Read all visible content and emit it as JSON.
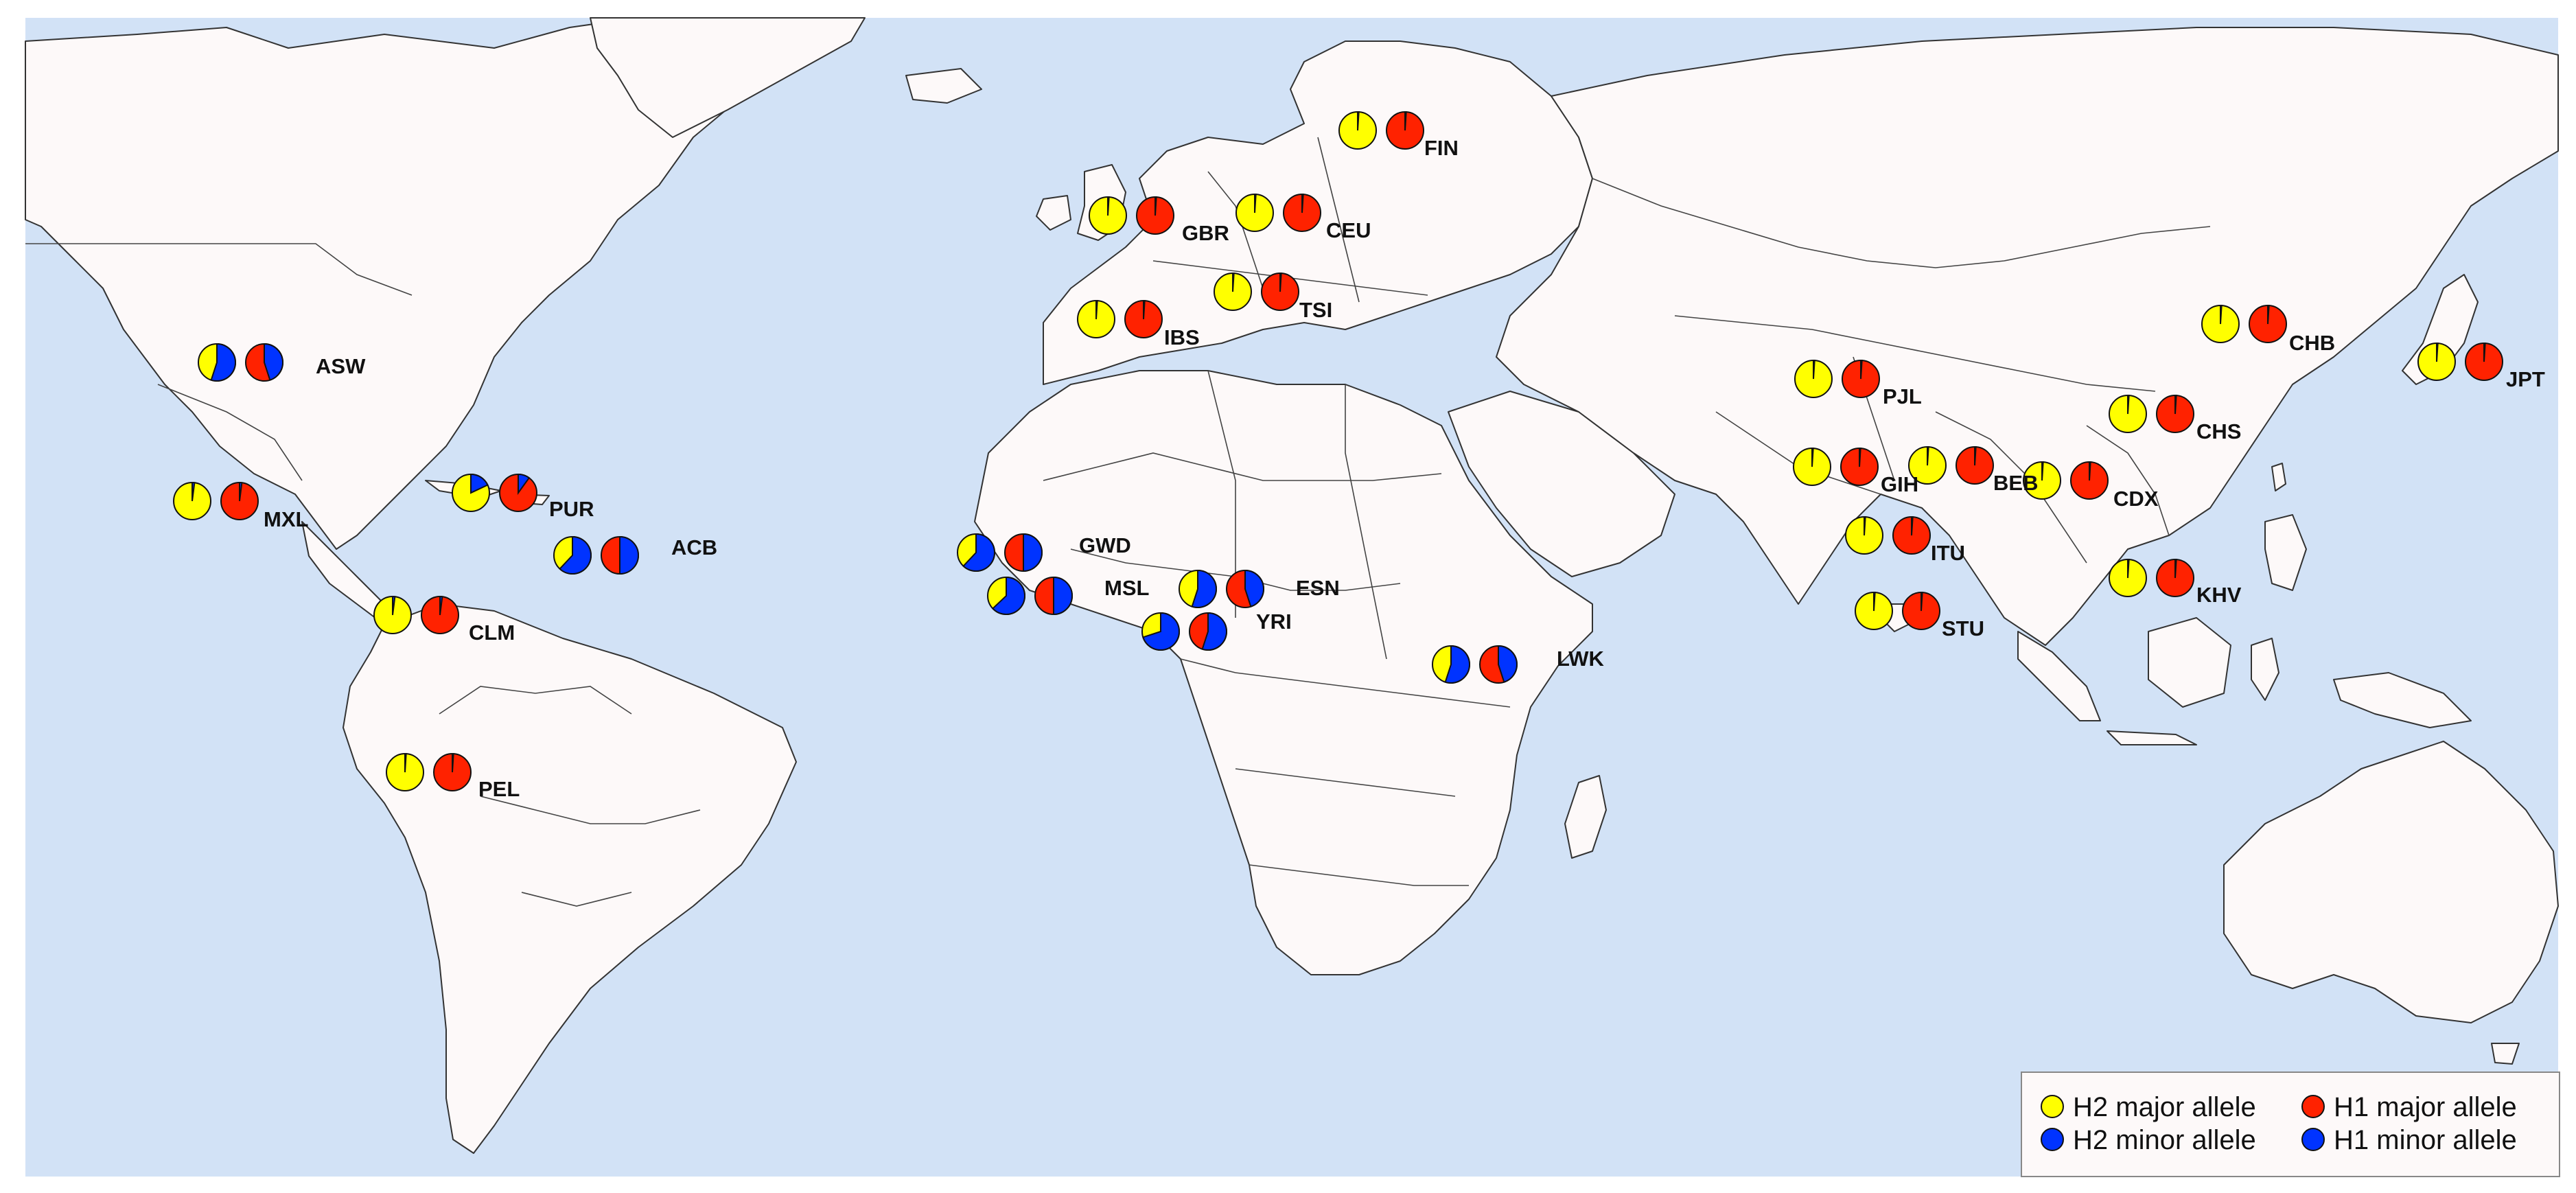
{
  "colors": {
    "ocean": "#d2e2f6",
    "land": "#fdf9f9",
    "border": "#333333",
    "h2_major": "#ffff00",
    "h2_minor": "#0033ff",
    "h1_major": "#ff2200",
    "h1_minor": "#0033ff"
  },
  "legend": {
    "h2_major": "H2 major allele",
    "h1_major": "H1 major allele",
    "h2_minor": "H2 minor allele",
    "h1_minor": "H1 minor allele"
  },
  "populations": [
    {
      "code": "FIN",
      "h2_minor_freq": 0.01,
      "h1_minor_freq": 0.01
    },
    {
      "code": "GBR",
      "h2_minor_freq": 0.01,
      "h1_minor_freq": 0.01
    },
    {
      "code": "CEU",
      "h2_minor_freq": 0.01,
      "h1_minor_freq": 0.01
    },
    {
      "code": "TSI",
      "h2_minor_freq": 0.01,
      "h1_minor_freq": 0.01
    },
    {
      "code": "IBS",
      "h2_minor_freq": 0.01,
      "h1_minor_freq": 0.01
    },
    {
      "code": "ASW",
      "h2_minor_freq": 0.55,
      "h1_minor_freq": 0.45
    },
    {
      "code": "MXL",
      "h2_minor_freq": 0.02,
      "h1_minor_freq": 0.02
    },
    {
      "code": "PUR",
      "h2_minor_freq": 0.18,
      "h1_minor_freq": 0.1
    },
    {
      "code": "ACB",
      "h2_minor_freq": 0.62,
      "h1_minor_freq": 0.5
    },
    {
      "code": "CLM",
      "h2_minor_freq": 0.02,
      "h1_minor_freq": 0.02
    },
    {
      "code": "PEL",
      "h2_minor_freq": 0.01,
      "h1_minor_freq": 0.01
    },
    {
      "code": "GWD",
      "h2_minor_freq": 0.62,
      "h1_minor_freq": 0.5
    },
    {
      "code": "MSL",
      "h2_minor_freq": 0.63,
      "h1_minor_freq": 0.5
    },
    {
      "code": "ESN",
      "h2_minor_freq": 0.55,
      "h1_minor_freq": 0.45
    },
    {
      "code": "YRI",
      "h2_minor_freq": 0.7,
      "h1_minor_freq": 0.55
    },
    {
      "code": "LWK",
      "h2_minor_freq": 0.55,
      "h1_minor_freq": 0.45
    },
    {
      "code": "PJL",
      "h2_minor_freq": 0.01,
      "h1_minor_freq": 0.01
    },
    {
      "code": "GIH",
      "h2_minor_freq": 0.01,
      "h1_minor_freq": 0.01
    },
    {
      "code": "BEB",
      "h2_minor_freq": 0.01,
      "h1_minor_freq": 0.01
    },
    {
      "code": "ITU",
      "h2_minor_freq": 0.01,
      "h1_minor_freq": 0.01
    },
    {
      "code": "STU",
      "h2_minor_freq": 0.01,
      "h1_minor_freq": 0.01
    },
    {
      "code": "CDX",
      "h2_minor_freq": 0.01,
      "h1_minor_freq": 0.01
    },
    {
      "code": "CHS",
      "h2_minor_freq": 0.01,
      "h1_minor_freq": 0.01
    },
    {
      "code": "CHB",
      "h2_minor_freq": 0.01,
      "h1_minor_freq": 0.01
    },
    {
      "code": "JPT",
      "h2_minor_freq": 0.01,
      "h1_minor_freq": 0.01
    },
    {
      "code": "KHV",
      "h2_minor_freq": 0.01,
      "h1_minor_freq": 0.01
    }
  ]
}
